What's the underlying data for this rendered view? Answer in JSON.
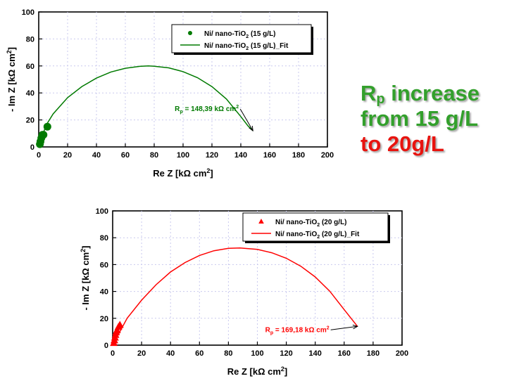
{
  "callout": {
    "line1_main": "R",
    "line1_sub": "p",
    "line1_rest": " increase",
    "line2": "from 15 g/L",
    "line3": "to 20g/L",
    "color_green": "#33a02c",
    "color_red": "#e8140f"
  },
  "chart_data": [
    {
      "type": "scatter",
      "title": "",
      "xlabel_prefix": "Re Z [k",
      "xlabel_omega": "Ω",
      "xlabel_unit": " cm",
      "xlabel_sup": "2",
      "xlabel_end": "]",
      "ylabel_prefix": "- Im Z [k",
      "ylabel_omega": "Ω",
      "ylabel_unit": " cm",
      "ylabel_sup": "2",
      "ylabel_end": "]",
      "xlim": [
        0,
        200
      ],
      "ylim": [
        0,
        100
      ],
      "xticks": [
        0,
        20,
        40,
        60,
        80,
        100,
        120,
        140,
        160,
        180,
        200
      ],
      "yticks": [
        0,
        20,
        40,
        60,
        80,
        100
      ],
      "grid": true,
      "legend_position": "top-right",
      "color": "#007a00",
      "series": [
        {
          "name_pre": "Ni/ nano-TiO",
          "name_sub": "2",
          "name_post": " (15 g/L)",
          "kind": "points",
          "marker": "circle",
          "x": [
            0.8,
            1.2,
            1.8,
            2.6,
            3.3,
            6.0
          ],
          "y": [
            2.0,
            4.0,
            6.5,
            9.0,
            9.0,
            15.0
          ]
        },
        {
          "name_pre": "Ni/ nano-TiO",
          "name_sub": "2",
          "name_post": " (15 g/L)_Fit",
          "kind": "line",
          "x": [
            0,
            5,
            10,
            20,
            30,
            40,
            50,
            60,
            70,
            76,
            80,
            90,
            100,
            110,
            120,
            130,
            140,
            145,
            148.4
          ],
          "y": [
            0,
            16,
            24.5,
            36.5,
            44.8,
            51,
            55.5,
            58.3,
            59.7,
            60,
            59.8,
            58.6,
            55.8,
            51.3,
            44.7,
            35.5,
            22.5,
            15.5,
            12
          ]
        }
      ],
      "annotation": {
        "text_pre": "R",
        "text_sub": "p",
        "text_mid": " = 148,39 k",
        "text_omega": "Ω",
        "text_unit": " cm",
        "text_sup": "2",
        "x": 148.39,
        "y": 12
      }
    },
    {
      "type": "scatter",
      "title": "",
      "xlabel_prefix": "Re Z [k",
      "xlabel_omega": "Ω",
      "xlabel_unit": " cm",
      "xlabel_sup": "2",
      "xlabel_end": "]",
      "ylabel_prefix": "- Im Z [k",
      "ylabel_omega": "Ω",
      "ylabel_unit": " cm",
      "ylabel_sup": "2",
      "ylabel_end": "]",
      "xlim": [
        0,
        200
      ],
      "ylim": [
        0,
        100
      ],
      "xticks": [
        0,
        20,
        40,
        60,
        80,
        100,
        120,
        140,
        160,
        180,
        200
      ],
      "yticks": [
        0,
        20,
        40,
        60,
        80,
        100
      ],
      "grid": true,
      "legend_position": "top-right",
      "color": "#ff0000",
      "series": [
        {
          "name_pre": "Ni/ nano-TiO",
          "name_sub": "2",
          "name_post": " (20 g/L)",
          "kind": "points",
          "marker": "triangle",
          "x": [
            0.8,
            1.2,
            1.6,
            2.0,
            2.4,
            3.0,
            4.0,
            5.0
          ],
          "y": [
            1.5,
            3.5,
            5.5,
            7.5,
            9.5,
            11.0,
            13.5,
            15.0
          ]
        },
        {
          "name_pre": "Ni/ nano-TiO",
          "name_sub": "2",
          "name_post": " (20 g/L)_Fit",
          "kind": "line",
          "x": [
            0,
            10,
            20,
            30,
            40,
            50,
            60,
            70,
            80,
            88,
            100,
            110,
            120,
            130,
            140,
            150,
            160,
            169.2
          ],
          "y": [
            0,
            20,
            33.5,
            45,
            54.5,
            61.5,
            66.8,
            70.3,
            72.1,
            72.4,
            71.3,
            68.8,
            64.7,
            58.8,
            50.8,
            40.2,
            26.5,
            14
          ]
        }
      ],
      "annotation": {
        "text_pre": "R",
        "text_sub": "p",
        "text_mid": " = 169,18 k",
        "text_omega": "Ω",
        "text_unit": " cm",
        "text_sup": "2",
        "x": 169.18,
        "y": 14
      }
    }
  ]
}
